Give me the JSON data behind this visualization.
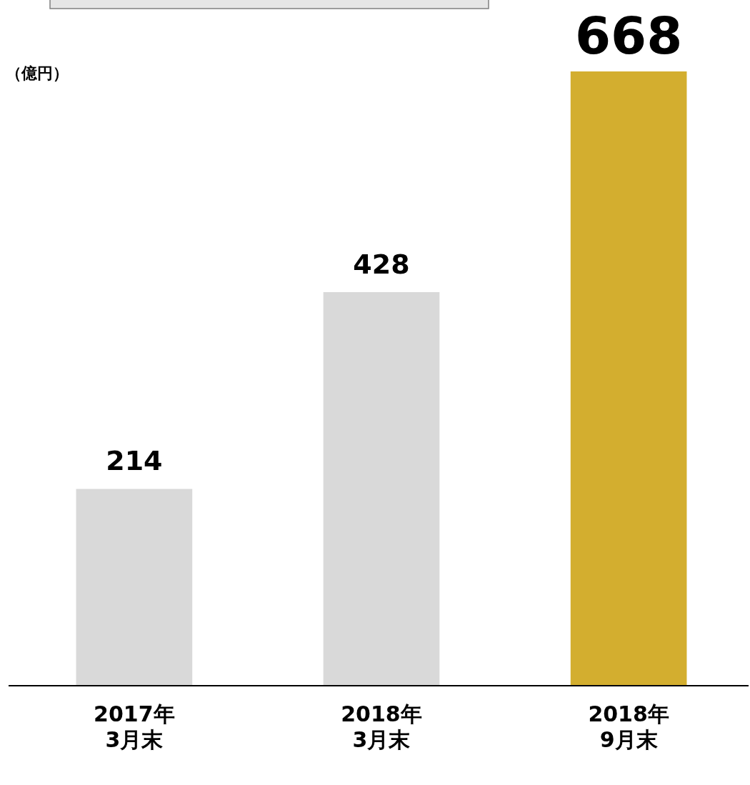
{
  "chart_data": {
    "type": "bar",
    "ylabel": "（億円）",
    "categories": [
      "2017年\n3月末",
      "2018年\n3月末",
      "2018年\n9月末"
    ],
    "values": [
      214,
      428,
      668
    ],
    "colors": [
      "#d9d9d9",
      "#d9d9d9",
      "#d3ae2f"
    ],
    "data_labels": true
  }
}
